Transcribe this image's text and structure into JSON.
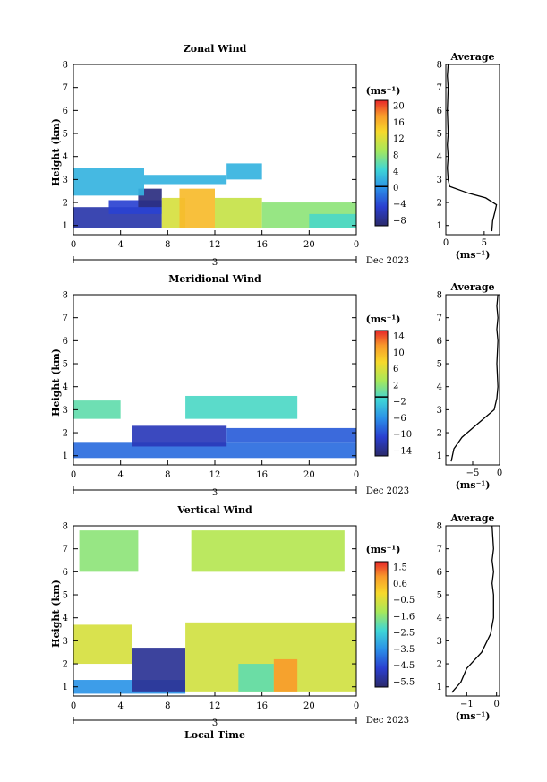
{
  "figure": {
    "date_label": "Dec 2023",
    "day_label": "3",
    "xlabel": "Local Time",
    "ylabel": "Height (km)",
    "units": "(ms⁻¹)",
    "avg_title": "Average",
    "x_ticks": [
      "0",
      "4",
      "8",
      "12",
      "16",
      "20",
      "0"
    ],
    "y_ticks": [
      "1",
      "2",
      "3",
      "4",
      "5",
      "6",
      "7",
      "8"
    ]
  },
  "chart_data": [
    {
      "type": "heatmap",
      "title": "Zonal Wind",
      "xlim": [
        0,
        24
      ],
      "ylim": [
        0.6,
        8
      ],
      "colorbar": {
        "range": [
          -10,
          22
        ],
        "ticks": [
          "20",
          "16",
          "12",
          "8",
          "4",
          "0",
          "−4",
          "−8"
        ],
        "contour": 0
      },
      "regions": [
        {
          "x": [
            0,
            7.5
          ],
          "y": [
            0.9,
            1.8
          ],
          "value": -7
        },
        {
          "x": [
            3,
            7.5
          ],
          "y": [
            1.5,
            2.1
          ],
          "value": -5
        },
        {
          "x": [
            5.5,
            7.5
          ],
          "y": [
            1.8,
            2.6
          ],
          "value": -9
        },
        {
          "x": [
            0,
            6
          ],
          "y": [
            2.3,
            3.5
          ],
          "value": 2
        },
        {
          "x": [
            6,
            13
          ],
          "y": [
            2.8,
            3.2
          ],
          "value": 2
        },
        {
          "x": [
            7.5,
            9.5
          ],
          "y": [
            0.9,
            2.2
          ],
          "value": 12
        },
        {
          "x": [
            9,
            12
          ],
          "y": [
            0.9,
            2.6
          ],
          "value": 16
        },
        {
          "x": [
            12,
            16
          ],
          "y": [
            0.9,
            2.2
          ],
          "value": 11
        },
        {
          "x": [
            16,
            24
          ],
          "y": [
            0.9,
            2.0
          ],
          "value": 8
        },
        {
          "x": [
            20,
            24
          ],
          "y": [
            0.9,
            1.5
          ],
          "value": 5
        },
        {
          "x": [
            13,
            16
          ],
          "y": [
            3.0,
            3.7
          ],
          "value": 2
        }
      ],
      "profile": {
        "x": [
          6,
          6.1,
          6.4,
          6.6,
          5.2,
          3,
          0.5,
          0.3,
          0.2,
          0.3,
          0.2,
          0.3,
          0.2,
          0.3,
          0.2,
          0.3
        ],
        "y": [
          0.75,
          1.2,
          1.6,
          1.9,
          2.2,
          2.4,
          2.7,
          3.0,
          3.5,
          4.0,
          4.5,
          5.0,
          6.0,
          7.0,
          7.5,
          8.0
        ],
        "xlim": [
          0,
          7
        ],
        "x_ticks": [
          "0",
          "5"
        ]
      }
    },
    {
      "type": "heatmap",
      "title": "Meridional Wind",
      "xlim": [
        0,
        24
      ],
      "ylim": [
        0.6,
        8
      ],
      "colorbar": {
        "range": [
          -16,
          18
        ],
        "ticks": [
          "14",
          "10",
          "6",
          "2",
          "−2",
          "−6",
          "−10",
          "−14"
        ],
        "contour": 0
      },
      "regions": [
        {
          "x": [
            0,
            24
          ],
          "y": [
            0.9,
            1.6
          ],
          "value": -8
        },
        {
          "x": [
            5,
            13
          ],
          "y": [
            1.4,
            2.3
          ],
          "value": -12
        },
        {
          "x": [
            13,
            24
          ],
          "y": [
            1.6,
            2.2
          ],
          "value": -9
        },
        {
          "x": [
            0,
            4
          ],
          "y": [
            2.6,
            3.4
          ],
          "value": 1
        },
        {
          "x": [
            9.5,
            19
          ],
          "y": [
            2.6,
            3.6
          ],
          "value": 0
        }
      ],
      "profile": {
        "x": [
          -9,
          -8.5,
          -7,
          -5,
          -3,
          -1,
          -0.5,
          -0.3,
          -0.5,
          -0.3,
          -0.5,
          -0.3,
          -0.5,
          -0.3
        ],
        "y": [
          0.75,
          1.3,
          1.8,
          2.2,
          2.6,
          3.0,
          3.5,
          4.0,
          5.0,
          6.0,
          6.5,
          7.0,
          7.5,
          8.0
        ],
        "xlim": [
          -10,
          0
        ],
        "x_ticks": [
          "−5",
          "0"
        ]
      }
    },
    {
      "type": "heatmap",
      "title": "Vertical Wind",
      "xlim": [
        0,
        24
      ],
      "ylim": [
        0.6,
        8
      ],
      "colorbar": {
        "range": [
          -6,
          2
        ],
        "ticks": [
          "1.5",
          "0.6",
          "−0.5",
          "−1.6",
          "−2.5",
          "−3.5",
          "−4.5",
          "−5.5"
        ]
      },
      "regions": [
        {
          "x": [
            0,
            9.5
          ],
          "y": [
            0.7,
            1.3
          ],
          "value": -3.5
        },
        {
          "x": [
            0,
            5
          ],
          "y": [
            2.0,
            3.7
          ],
          "value": -0.5
        },
        {
          "x": [
            5,
            9.5
          ],
          "y": [
            0.8,
            2.7
          ],
          "value": -5.5
        },
        {
          "x": [
            9.5,
            24
          ],
          "y": [
            0.8,
            3.8
          ],
          "value": -0.6
        },
        {
          "x": [
            14,
            17
          ],
          "y": [
            0.8,
            2.0
          ],
          "value": -2
        },
        {
          "x": [
            17,
            19
          ],
          "y": [
            0.8,
            2.2
          ],
          "value": 1
        },
        {
          "x": [
            0.5,
            5.5
          ],
          "y": [
            6.0,
            7.8
          ],
          "value": -1.5
        },
        {
          "x": [
            10,
            23
          ],
          "y": [
            6.0,
            7.8
          ],
          "value": -1.0
        }
      ],
      "profile": {
        "x": [
          -1.5,
          -1.2,
          -1.0,
          -0.5,
          -0.2,
          -0.1,
          -0.1,
          -0.15,
          -0.1,
          -0.15,
          -0.1,
          -0.15
        ],
        "y": [
          0.75,
          1.2,
          1.8,
          2.5,
          3.3,
          4.0,
          5.0,
          5.5,
          6.0,
          6.5,
          7.0,
          8.0
        ],
        "xlim": [
          -1.7,
          0.1
        ],
        "x_ticks": [
          "−1",
          "0"
        ]
      }
    }
  ]
}
